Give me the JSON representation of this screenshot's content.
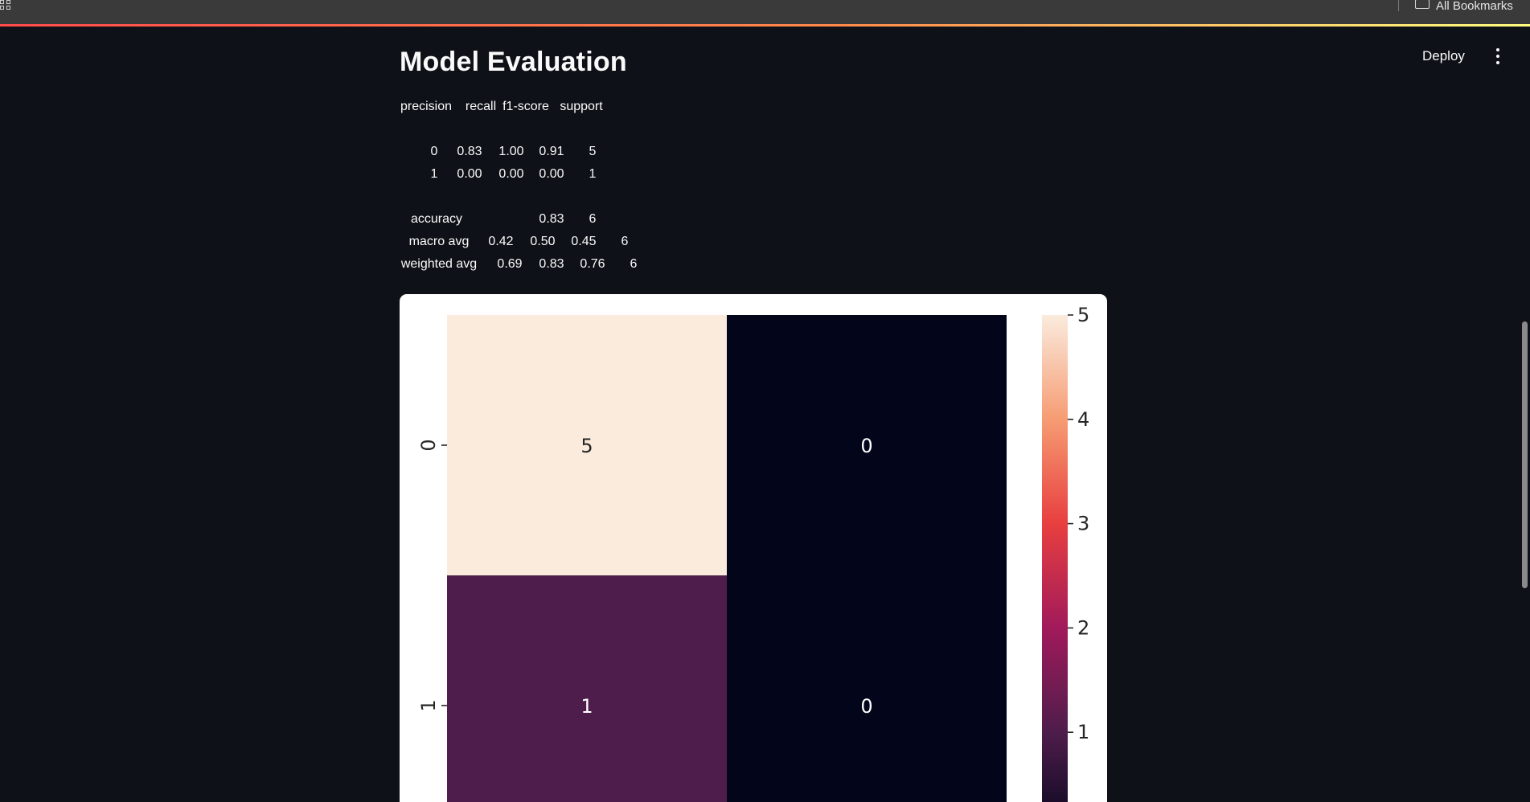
{
  "browser": {
    "bookmarks_label": "All Bookmarks",
    "icons": {
      "apps": "apps-grid-icon",
      "folder": "folder-icon"
    }
  },
  "header": {
    "deploy_label": "Deploy",
    "menu_icon": "vertical-ellipsis-icon"
  },
  "main": {
    "title": "Model Evaluation",
    "report": {
      "columns": [
        "precision",
        "recall",
        "f1-score",
        "support"
      ],
      "rows": [
        {
          "label": "0",
          "values": [
            "0.83",
            "1.00",
            "0.91",
            "5"
          ]
        },
        {
          "label": "1",
          "values": [
            "0.00",
            "0.00",
            "0.00",
            "1"
          ]
        },
        {
          "label": "accuracy",
          "values": [
            "0.83",
            "6"
          ]
        },
        {
          "label": "macro avg",
          "values": [
            "0.42",
            "0.50",
            "0.45",
            "6"
          ]
        },
        {
          "label": "weighted avg",
          "values": [
            "0.69",
            "0.83",
            "0.76",
            "6"
          ]
        }
      ]
    }
  },
  "chart_data": {
    "type": "heatmap",
    "rows": [
      "0",
      "1"
    ],
    "matrix": [
      [
        5,
        0
      ],
      [
        1,
        0
      ]
    ],
    "annotations": [
      [
        "5",
        "0"
      ],
      [
        "1",
        "0"
      ]
    ],
    "colorbar": {
      "ticks": [
        1,
        2,
        3,
        4,
        5
      ],
      "range": [
        0,
        5
      ],
      "colormap": "rocket"
    },
    "colors": {
      "cell_5": "#faebdd",
      "cell_1": "#4e1d4b",
      "cell_0": "#03051a",
      "annotation_dark": "#262626",
      "annotation_light": "#ffffff"
    }
  },
  "theme": {
    "background": "#0e1117",
    "accent": "#ff4b4b"
  }
}
